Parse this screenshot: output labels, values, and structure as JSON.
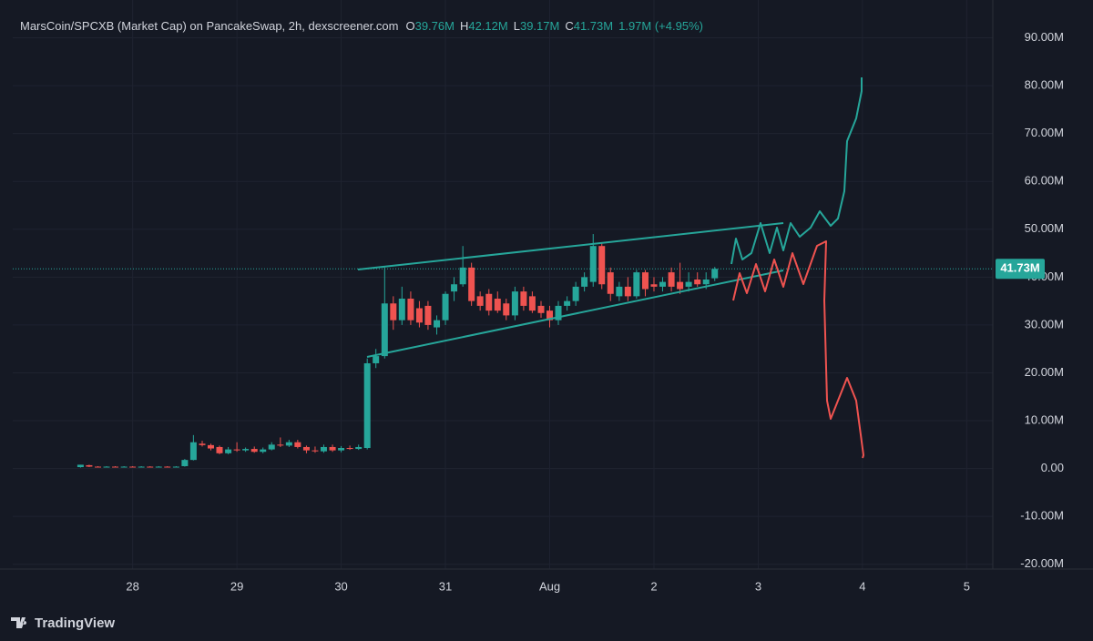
{
  "chart_data": {
    "type": "candlestick",
    "title": "MarsCoin/SPCXB (Market Cap) on PancakeSwap, 2h, dexscreener.com",
    "ohlc_legend": [
      {
        "key": "O",
        "label": "39.76M"
      },
      {
        "key": "H",
        "label": "42.12M"
      },
      {
        "key": "L",
        "label": "39.17M"
      },
      {
        "key": "C",
        "label": "41.73M"
      }
    ],
    "change_label": "1.97M (+4.95%)",
    "brand": "TradingView",
    "up_color": "#26a69a",
    "down_color": "#ef5350",
    "grid": true,
    "ylim": [
      -21,
      96
    ],
    "yticks": [
      {
        "value": 90,
        "label": "90.00M"
      },
      {
        "value": 80,
        "label": "80.00M"
      },
      {
        "value": 70,
        "label": "70.00M"
      },
      {
        "value": 60,
        "label": "60.00M"
      },
      {
        "value": 50,
        "label": "50.00M"
      },
      {
        "value": 40,
        "label": "40.00M"
      },
      {
        "value": 30,
        "label": "30.00M"
      },
      {
        "value": 20,
        "label": "20.00M"
      },
      {
        "value": 10,
        "label": "10.00M"
      },
      {
        "value": 0,
        "label": "0.00"
      },
      {
        "value": -10,
        "label": "-10.00M"
      },
      {
        "value": -20,
        "label": "-20.00M"
      }
    ],
    "xlim": [
      26.85,
      36.25
    ],
    "xticks": [
      28,
      29,
      30,
      31,
      {
        "value": 32,
        "label": "Aug"
      },
      {
        "value": 33,
        "label": "2"
      },
      {
        "value": 34,
        "label": "3"
      },
      {
        "value": 35,
        "label": "4"
      },
      {
        "value": 36,
        "label": "5"
      }
    ],
    "last_price": {
      "value": 41.73,
      "label": "41.73M"
    },
    "x": [
      27.5,
      27.583,
      27.667,
      27.75,
      27.833,
      27.917,
      28,
      28.083,
      28.167,
      28.25,
      28.333,
      28.417,
      28.5,
      28.583,
      28.667,
      28.75,
      28.833,
      28.917,
      29,
      29.083,
      29.167,
      29.25,
      29.333,
      29.417,
      29.5,
      29.583,
      29.667,
      29.75,
      29.833,
      29.917,
      30,
      30.083,
      30.167,
      30.25,
      30.333,
      30.417,
      30.5,
      30.583,
      30.667,
      30.75,
      30.833,
      30.917,
      31,
      31.083,
      31.167,
      31.25,
      31.333,
      31.417,
      31.5,
      31.583,
      31.667,
      31.75,
      31.833,
      31.917,
      32,
      32.083,
      32.167,
      32.25,
      32.333,
      32.417,
      32.5,
      32.583,
      32.667,
      32.75,
      32.833,
      32.917,
      33,
      33.083,
      33.167,
      33.25,
      33.333,
      33.417,
      33.5,
      33.583
    ],
    "open": [
      0.3,
      0.7,
      0.4,
      0.35,
      0.4,
      0.35,
      0.4,
      0.35,
      0.4,
      0.35,
      0.4,
      0.35,
      0.5,
      1.8,
      5.2,
      4.9,
      4.5,
      3.2,
      4,
      3.8,
      4.1,
      3.5,
      4,
      5,
      4.8,
      5.5,
      4.5,
      3.8,
      3.6,
      4.5,
      3.8,
      4.3,
      4.1,
      4.3,
      22,
      23.5,
      34.5,
      31,
      35.5,
      33.5,
      34,
      29.5,
      31,
      37,
      38.5,
      42,
      36,
      36.5,
      35.5,
      34.5,
      32,
      37,
      36,
      34,
      33,
      31,
      34,
      35,
      38,
      39,
      46.5,
      41,
      36,
      38,
      36,
      41,
      38.5,
      38,
      41,
      39,
      38,
      39.5,
      38.5,
      39.76
    ],
    "high": [
      0.8,
      0.8,
      0.5,
      0.5,
      0.5,
      0.5,
      0.5,
      0.5,
      0.5,
      0.5,
      0.5,
      0.5,
      2,
      7,
      5.8,
      5.2,
      4.8,
      4.5,
      5.5,
      4.4,
      4.6,
      4.4,
      5.5,
      6.5,
      6,
      6,
      4.8,
      4.6,
      5,
      5,
      4.7,
      4.8,
      5,
      23,
      25,
      42,
      36,
      38,
      37,
      35,
      35,
      32,
      37,
      40,
      46.5,
      43,
      37,
      37.5,
      37,
      35.5,
      38,
      38,
      37,
      35,
      34,
      35,
      36,
      39,
      41,
      49,
      47,
      42,
      39,
      40,
      41.5,
      41.5,
      40,
      40,
      42,
      43,
      41,
      41,
      41,
      42.12
    ],
    "low": [
      0.2,
      0.3,
      0.3,
      0.3,
      0.3,
      0.3,
      0.3,
      0.3,
      0.3,
      0.3,
      0.3,
      0.3,
      0.4,
      1.7,
      4.6,
      3.8,
      3,
      3,
      3.5,
      3.5,
      3.3,
      3.2,
      3.8,
      4.5,
      4.5,
      4.2,
      3.2,
      3.3,
      3.3,
      3.5,
      3.4,
      3.9,
      3.9,
      4,
      21,
      23,
      29,
      30,
      30,
      29.5,
      29,
      28,
      30,
      35,
      38,
      34,
      33,
      32,
      32.5,
      31,
      31,
      33,
      32.5,
      31.5,
      29.5,
      30,
      33,
      34,
      37,
      38,
      37.5,
      35,
      35,
      35,
      35.5,
      36,
      37,
      37,
      37,
      36.5,
      37,
      38,
      37.5,
      39.17
    ],
    "close": [
      0.8,
      0.4,
      0.35,
      0.4,
      0.35,
      0.4,
      0.35,
      0.4,
      0.35,
      0.4,
      0.35,
      0.4,
      1.8,
      5.5,
      4.9,
      4.2,
      3.2,
      4,
      3.8,
      4.1,
      3.5,
      4,
      5,
      4.8,
      5.5,
      4.5,
      3.8,
      3.6,
      4.5,
      3.8,
      4.3,
      4.1,
      4.5,
      22,
      23.5,
      34.5,
      31,
      35.5,
      31,
      30.5,
      30,
      31,
      36.5,
      38.5,
      42,
      35,
      34,
      33,
      33,
      32,
      37,
      34,
      33,
      32.5,
      31,
      34,
      35,
      38,
      40,
      46.5,
      38.5,
      36.5,
      38,
      36,
      41,
      37.5,
      38,
      39,
      38,
      37.5,
      39,
      38.5,
      39.5,
      41.73
    ]
  }
}
